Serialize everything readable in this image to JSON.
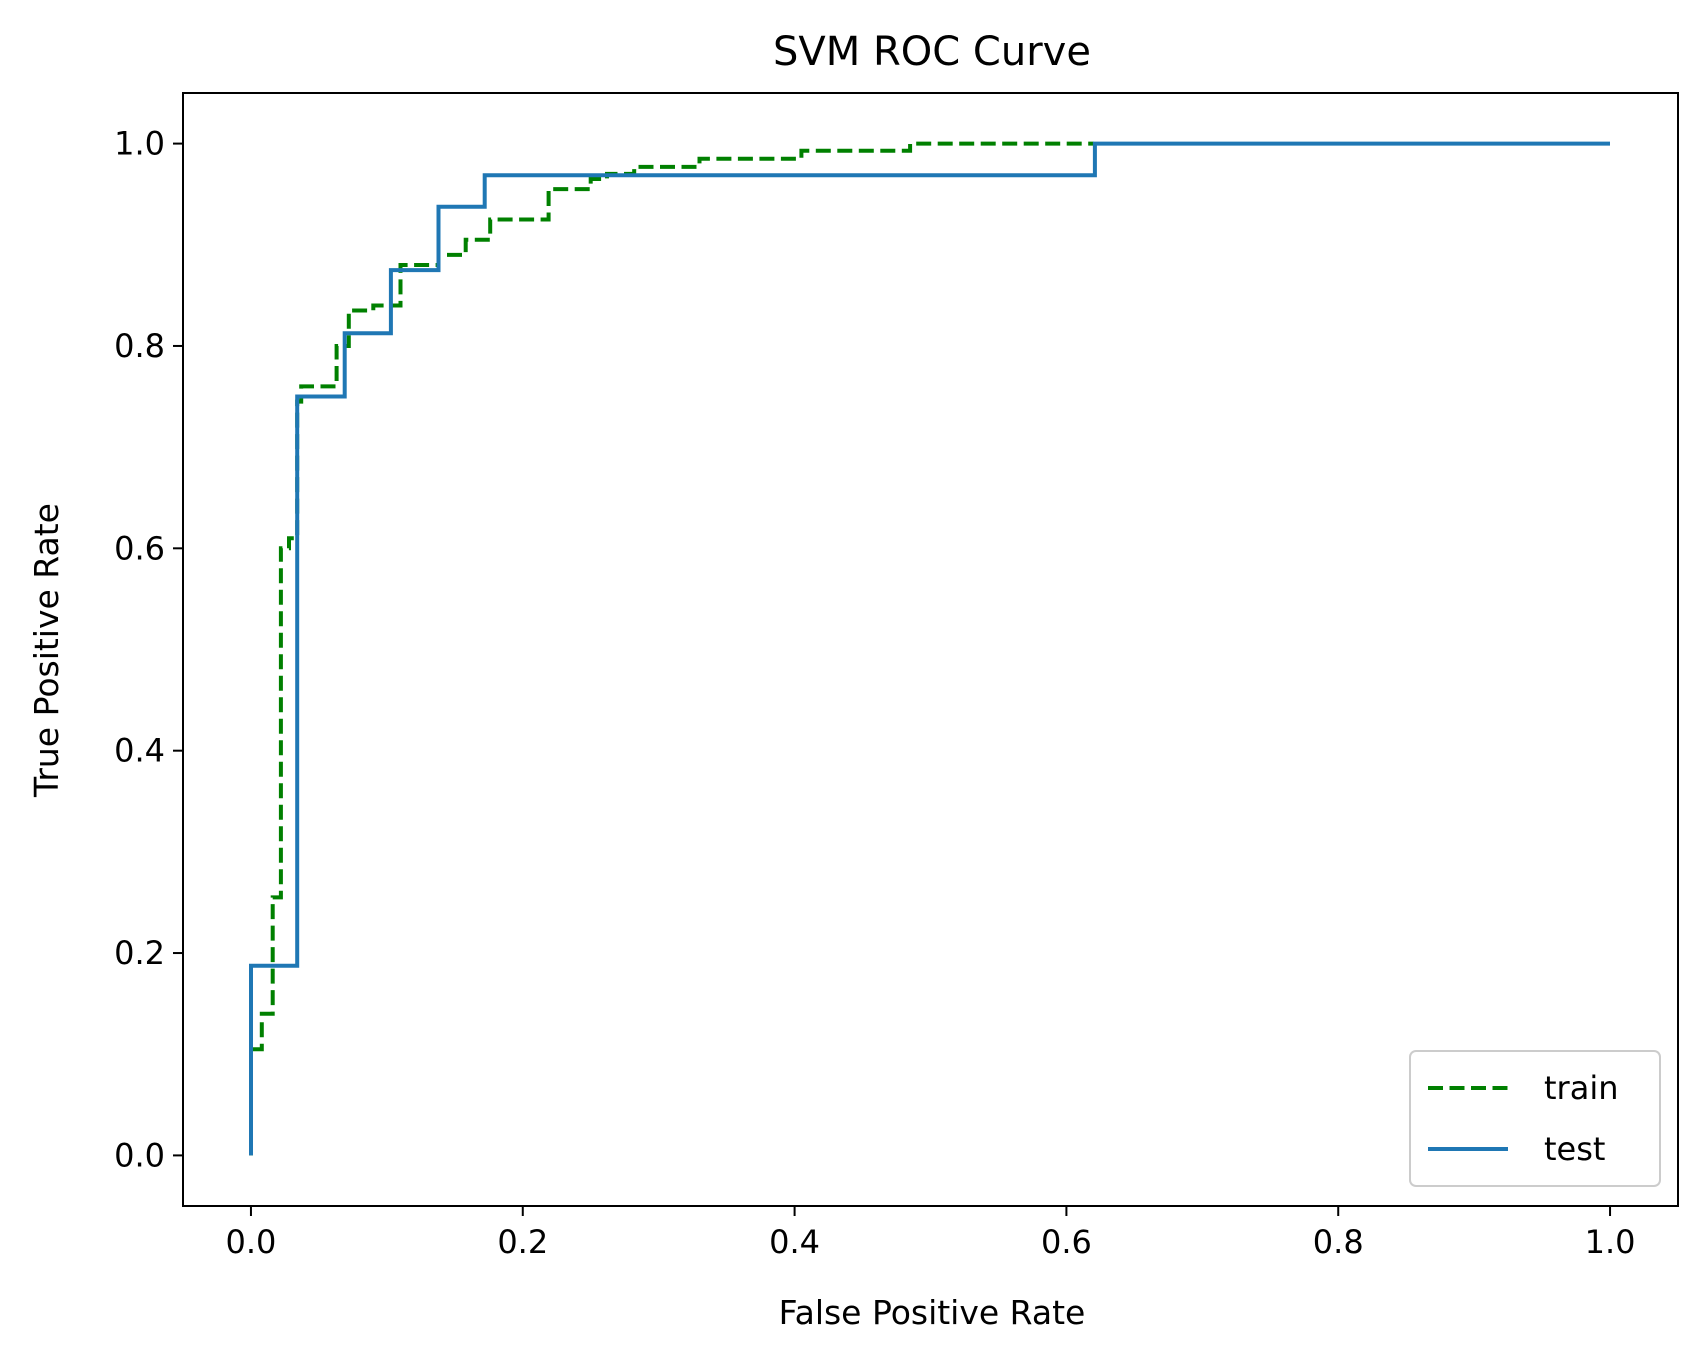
{
  "chart_data": {
    "type": "line",
    "title": "SVM ROC Curve",
    "xlabel": "False Positive Rate",
    "ylabel": "True Positive Rate",
    "xlim": [
      -0.05,
      1.05
    ],
    "ylim": [
      -0.05,
      1.05
    ],
    "xticks": [
      "0.0",
      "0.2",
      "0.4",
      "0.6",
      "0.8",
      "1.0"
    ],
    "yticks": [
      "0.0",
      "0.2",
      "0.4",
      "0.6",
      "0.8",
      "1.0"
    ],
    "grid": false,
    "legend_position": "lower-right",
    "series": [
      {
        "name": "train",
        "color": "#008000",
        "dash": "dashed",
        "step": true,
        "x": [
          0.0,
          0.0,
          0.008,
          0.008,
          0.016,
          0.016,
          0.022,
          0.022,
          0.028,
          0.028,
          0.034,
          0.034,
          0.037,
          0.037,
          0.063,
          0.063,
          0.072,
          0.072,
          0.09,
          0.09,
          0.11,
          0.11,
          0.138,
          0.138,
          0.158,
          0.158,
          0.176,
          0.176,
          0.219,
          0.219,
          0.25,
          0.25,
          0.262,
          0.262,
          0.282,
          0.282,
          0.33,
          0.33,
          0.405,
          0.405,
          0.485,
          0.485,
          0.62
        ],
        "y": [
          0.0,
          0.105,
          0.105,
          0.14,
          0.14,
          0.255,
          0.255,
          0.6,
          0.6,
          0.61,
          0.61,
          0.745,
          0.745,
          0.76,
          0.76,
          0.8,
          0.8,
          0.835,
          0.835,
          0.84,
          0.84,
          0.88,
          0.88,
          0.89,
          0.89,
          0.905,
          0.905,
          0.925,
          0.925,
          0.955,
          0.955,
          0.965,
          0.965,
          0.97,
          0.97,
          0.977,
          0.977,
          0.985,
          0.985,
          0.993,
          0.993,
          1.0,
          1.0
        ]
      },
      {
        "name": "test",
        "color": "#1f77b4",
        "dash": "solid",
        "step": true,
        "x": [
          0.0,
          0.0,
          0.034,
          0.034,
          0.069,
          0.069,
          0.103,
          0.103,
          0.138,
          0.138,
          0.172,
          0.172,
          0.621,
          0.621,
          1.0
        ],
        "y": [
          0.0,
          0.1875,
          0.1875,
          0.75,
          0.75,
          0.8125,
          0.8125,
          0.875,
          0.875,
          0.9375,
          0.9375,
          0.96875,
          0.96875,
          1.0,
          1.0
        ]
      }
    ]
  }
}
